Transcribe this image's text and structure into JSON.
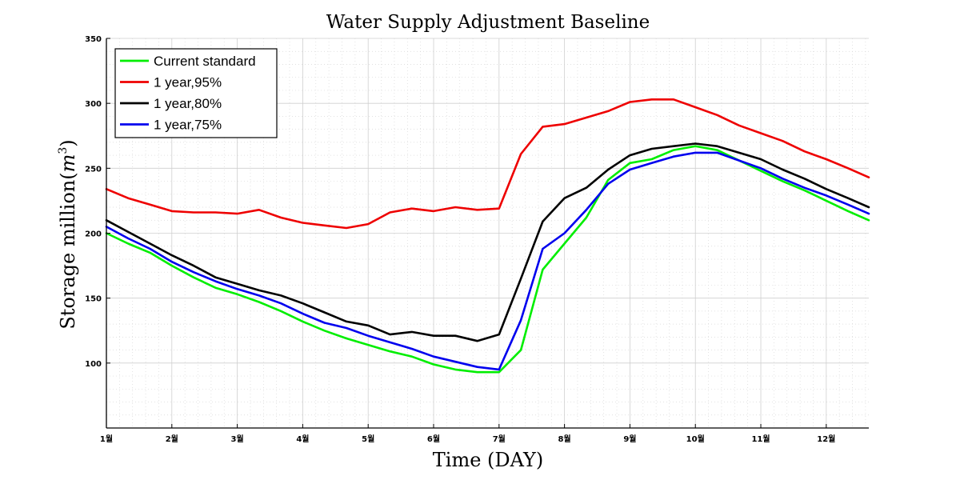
{
  "chart_data": {
    "type": "line",
    "title": "Water Supply Adjustment Baseline",
    "xlabel": "Time (DAY)",
    "ylabel": "Storage million(m³)",
    "ylabel_main": "Storage million",
    "ylabel_unit_base": "m",
    "ylabel_unit_exp": "3",
    "xlim": [
      1,
      12.65
    ],
    "ylim": [
      50,
      350
    ],
    "grid": true,
    "legend_position": "top-left",
    "y_ticks": [
      100,
      150,
      200,
      250,
      300,
      350
    ],
    "x_ticks": [
      {
        "value": 1,
        "label": "1월"
      },
      {
        "value": 2,
        "label": "2월"
      },
      {
        "value": 3,
        "label": "3월"
      },
      {
        "value": 4,
        "label": "4월"
      },
      {
        "value": 5,
        "label": "5월"
      },
      {
        "value": 6,
        "label": "6월"
      },
      {
        "value": 7,
        "label": "7월"
      },
      {
        "value": 8,
        "label": "8월"
      },
      {
        "value": 9,
        "label": "9월"
      },
      {
        "value": 10,
        "label": "10월"
      },
      {
        "value": 11,
        "label": "11월"
      },
      {
        "value": 12,
        "label": "12월"
      }
    ],
    "x": [
      1.0,
      1.333,
      1.667,
      2.0,
      2.333,
      2.667,
      3.0,
      3.333,
      3.667,
      4.0,
      4.333,
      4.667,
      5.0,
      5.333,
      5.667,
      6.0,
      6.333,
      6.667,
      7.0,
      7.333,
      7.667,
      8.0,
      8.333,
      8.667,
      9.0,
      9.333,
      9.667,
      10.0,
      10.333,
      10.667,
      11.0,
      11.333,
      11.667,
      12.0,
      12.333,
      12.65
    ],
    "series": [
      {
        "name": "Current standard",
        "color": "#00ee00",
        "values": [
          200,
          192,
          185,
          175,
          166,
          158,
          153,
          147,
          140,
          132,
          125,
          119,
          114,
          109,
          105,
          99,
          95,
          93,
          93,
          110,
          172,
          192,
          212,
          241,
          254,
          257,
          264,
          267,
          264,
          256,
          248,
          240,
          233,
          225,
          217,
          210
        ]
      },
      {
        "name": "1 year,95%",
        "color": "#ee0000",
        "values": [
          234,
          227,
          222,
          217,
          216,
          216,
          215,
          218,
          212,
          208,
          206,
          204,
          207,
          216,
          219,
          217,
          220,
          218,
          219,
          261,
          282,
          284,
          289,
          294,
          301,
          303,
          303,
          297,
          291,
          283,
          277,
          271,
          263,
          257,
          250,
          243
        ]
      },
      {
        "name": "1 year,80%",
        "color": "#000000",
        "values": [
          210,
          201,
          192,
          183,
          175,
          166,
          161,
          156,
          152,
          146,
          139,
          132,
          129,
          122,
          124,
          121,
          121,
          117,
          122,
          165,
          209,
          227,
          235,
          249,
          260,
          265,
          267,
          269,
          267,
          262,
          257,
          249,
          242,
          234,
          227,
          220
        ]
      },
      {
        "name": "1 year,75%",
        "color": "#0000ee",
        "values": [
          205,
          196,
          188,
          178,
          170,
          163,
          157,
          152,
          146,
          138,
          131,
          127,
          121,
          116,
          111,
          105,
          101,
          97,
          95,
          133,
          188,
          200,
          218,
          238,
          249,
          254,
          259,
          262,
          262,
          256,
          250,
          242,
          235,
          229,
          222,
          215
        ]
      }
    ]
  }
}
